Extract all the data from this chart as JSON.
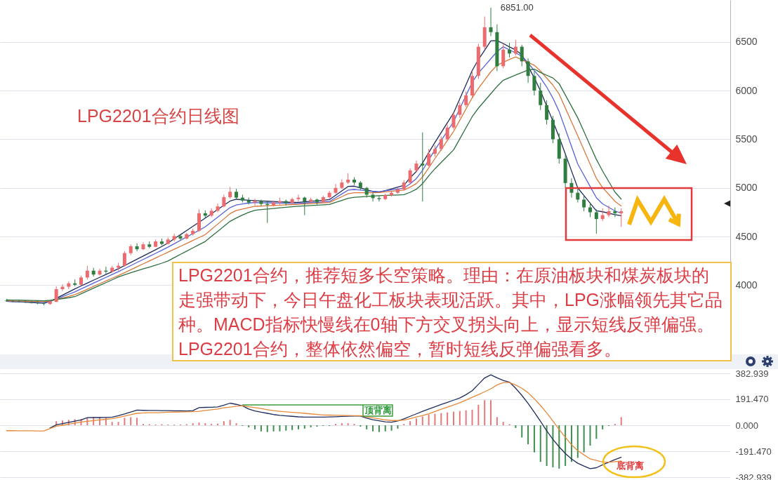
{
  "chart_data": [
    {
      "type": "candlestick",
      "title": "LPG2201合约日线图",
      "categories": [
        null,
        null,
        null,
        null,
        null,
        null,
        null,
        null,
        null,
        null,
        null,
        null,
        null,
        null,
        null,
        null,
        null,
        null,
        null,
        null,
        null,
        null,
        null,
        null,
        null,
        null,
        null,
        null,
        null,
        null,
        null,
        null,
        null,
        null,
        null,
        null,
        null,
        null,
        null,
        null,
        null,
        null,
        null,
        null,
        null,
        null,
        null,
        null,
        null,
        null,
        null,
        null,
        null,
        null,
        null,
        null,
        null,
        null,
        null,
        null,
        null,
        null,
        null,
        null,
        null,
        null,
        null,
        null,
        null,
        null,
        null,
        null,
        null,
        null,
        null,
        null,
        null,
        null,
        null,
        null,
        null,
        null,
        null,
        null,
        null,
        null,
        null,
        null,
        null,
        null,
        null,
        null,
        null,
        null,
        null,
        null,
        null,
        null,
        null,
        null
      ],
      "ohlc": [
        [
          3845,
          3860,
          3830,
          3840
        ],
        [
          3838,
          3850,
          3825,
          3835
        ],
        [
          3835,
          3848,
          3822,
          3832
        ],
        [
          3830,
          3845,
          3818,
          3826
        ],
        [
          3826,
          3840,
          3812,
          3820
        ],
        [
          3820,
          3835,
          3805,
          3814
        ],
        [
          3812,
          3825,
          3795,
          3808
        ],
        [
          3808,
          3840,
          3800,
          3830
        ],
        [
          3830,
          3990,
          3825,
          3960
        ],
        [
          3960,
          4010,
          3940,
          3985
        ],
        [
          3985,
          4040,
          3960,
          4020
        ],
        [
          4020,
          4060,
          3990,
          4005
        ],
        [
          4005,
          4100,
          3995,
          4080
        ],
        [
          4080,
          4200,
          4060,
          4150
        ],
        [
          4150,
          4180,
          4090,
          4110
        ],
        [
          4110,
          4170,
          4100,
          4150
        ],
        [
          4150,
          4190,
          4120,
          4140
        ],
        [
          4140,
          4200,
          4130,
          4180
        ],
        [
          4180,
          4230,
          4150,
          4200
        ],
        [
          4200,
          4350,
          4190,
          4330
        ],
        [
          4330,
          4420,
          4310,
          4400
        ],
        [
          4400,
          4430,
          4350,
          4370
        ],
        [
          4370,
          4440,
          4360,
          4420
        ],
        [
          4420,
          4450,
          4380,
          4395
        ],
        [
          4395,
          4470,
          4390,
          4450
        ],
        [
          4450,
          4480,
          4410,
          4425
        ],
        [
          4425,
          4490,
          4420,
          4470
        ],
        [
          4470,
          4530,
          4450,
          4505
        ],
        [
          4505,
          4520,
          4460,
          4480
        ],
        [
          4480,
          4540,
          4470,
          4525
        ],
        [
          4525,
          4580,
          4510,
          4560
        ],
        [
          4560,
          4780,
          4550,
          4740
        ],
        [
          4740,
          4770,
          4690,
          4715
        ],
        [
          4715,
          4790,
          4700,
          4765
        ],
        [
          4765,
          4840,
          4750,
          4810
        ],
        [
          4810,
          4930,
          4800,
          4905
        ],
        [
          4905,
          5010,
          4890,
          4960
        ],
        [
          4960,
          4990,
          4880,
          4900
        ],
        [
          4900,
          4930,
          4850,
          4870
        ],
        [
          4870,
          4900,
          4830,
          4850
        ],
        [
          4850,
          4890,
          4820,
          4865
        ],
        [
          4865,
          4880,
          4810,
          4835
        ],
        [
          4835,
          4860,
          4640,
          4825
        ],
        [
          4825,
          4870,
          4810,
          4850
        ],
        [
          4850,
          4900,
          4830,
          4865
        ],
        [
          4865,
          4880,
          4820,
          4845
        ],
        [
          4845,
          4900,
          4840,
          4885
        ],
        [
          4885,
          4930,
          4860,
          4900
        ],
        [
          4900,
          4910,
          4720,
          4860
        ],
        [
          4860,
          4900,
          4840,
          4880
        ],
        [
          4880,
          4890,
          4830,
          4855
        ],
        [
          4855,
          4920,
          4850,
          4905
        ],
        [
          4905,
          4970,
          4890,
          4950
        ],
        [
          4950,
          5040,
          4940,
          5000
        ],
        [
          5000,
          5090,
          4990,
          5055
        ],
        [
          5055,
          5150,
          5040,
          5085
        ],
        [
          5085,
          5110,
          5030,
          5055
        ],
        [
          5055,
          5070,
          4980,
          5000
        ],
        [
          5000,
          5010,
          4900,
          4930
        ],
        [
          4930,
          4950,
          4860,
          4895
        ],
        [
          4895,
          4920,
          4860,
          4885
        ],
        [
          4885,
          4940,
          4875,
          4925
        ],
        [
          4925,
          4970,
          4910,
          4950
        ],
        [
          4950,
          5000,
          4940,
          4985
        ],
        [
          4985,
          5080,
          4975,
          5055
        ],
        [
          5055,
          5200,
          5045,
          5180
        ],
        [
          5180,
          5280,
          5160,
          5250
        ],
        [
          5250,
          5570,
          4860,
          5230
        ],
        [
          5230,
          5400,
          5220,
          5350
        ],
        [
          5350,
          5440,
          5320,
          5400
        ],
        [
          5400,
          5530,
          5380,
          5500
        ],
        [
          5500,
          5650,
          5480,
          5620
        ],
        [
          5620,
          5780,
          5600,
          5750
        ],
        [
          5750,
          5880,
          5720,
          5850
        ],
        [
          5850,
          5990,
          5830,
          5950
        ],
        [
          5950,
          6200,
          5930,
          6150
        ],
        [
          6150,
          6480,
          6120,
          6450
        ],
        [
          6450,
          6760,
          6420,
          6650
        ],
        [
          6650,
          6851,
          6560,
          6600
        ],
        [
          6600,
          6680,
          6200,
          6250
        ],
        [
          6250,
          6480,
          6230,
          6420
        ],
        [
          6420,
          6490,
          6340,
          6380
        ],
        [
          6380,
          6520,
          6360,
          6450
        ],
        [
          6450,
          6470,
          6250,
          6300
        ],
        [
          6300,
          6330,
          6080,
          6150
        ],
        [
          6150,
          6200,
          5950,
          6000
        ],
        [
          6000,
          6080,
          5800,
          5850
        ],
        [
          5850,
          5900,
          5650,
          5700
        ],
        [
          5700,
          5740,
          5460,
          5500
        ],
        [
          5500,
          5560,
          5250,
          5300
        ],
        [
          5300,
          5340,
          5000,
          5050
        ],
        [
          5050,
          5100,
          4900,
          4950
        ],
        [
          4950,
          5000,
          4850,
          4880
        ],
        [
          4880,
          4920,
          4760,
          4800
        ],
        [
          4800,
          4850,
          4700,
          4750
        ],
        [
          4750,
          4780,
          4530,
          4680
        ],
        [
          4680,
          4790,
          4660,
          4720
        ],
        [
          4720,
          4820,
          4700,
          4760
        ],
        [
          4760,
          4800,
          4700,
          4740
        ],
        [
          4740,
          4790,
          4600,
          4760
        ]
      ],
      "colors": [
        "#2f7d3f",
        "#2f7d3f",
        "#2f7d3f",
        "#2f7d3f",
        "#2f7d3f",
        "#2f7d3f",
        "#2f7d3f",
        "#ec6b6f",
        "#ec6b6f",
        "#ec6b6f",
        "#ec6b6f",
        "#2f7d3f",
        "#ec6b6f",
        "#ec6b6f",
        "#2f7d3f",
        "#ec6b6f",
        "#2f7d3f",
        "#ec6b6f",
        "#ec6b6f",
        "#ec6b6f",
        "#ec6b6f",
        "#2f7d3f",
        "#ec6b6f",
        "#2f7d3f",
        "#ec6b6f",
        "#2f7d3f",
        "#ec6b6f",
        "#ec6b6f",
        "#2f7d3f",
        "#ec6b6f",
        "#ec6b6f",
        "#ec6b6f",
        "#2f7d3f",
        "#ec6b6f",
        "#ec6b6f",
        "#ec6b6f",
        "#ec6b6f",
        "#2f7d3f",
        "#2f7d3f",
        "#2f7d3f",
        "#ec6b6f",
        "#2f7d3f",
        "#2f7d3f",
        "#ec6b6f",
        "#ec6b6f",
        "#2f7d3f",
        "#ec6b6f",
        "#ec6b6f",
        "#2f7d3f",
        "#ec6b6f",
        "#2f7d3f",
        "#ec6b6f",
        "#ec6b6f",
        "#ec6b6f",
        "#ec6b6f",
        "#ec6b6f",
        "#2f7d3f",
        "#2f7d3f",
        "#2f7d3f",
        "#2f7d3f",
        "#2f7d3f",
        "#ec6b6f",
        "#ec6b6f",
        "#ec6b6f",
        "#ec6b6f",
        "#ec6b6f",
        "#ec6b6f",
        "#2f7d3f",
        "#ec6b6f",
        "#ec6b6f",
        "#ec6b6f",
        "#ec6b6f",
        "#ec6b6f",
        "#ec6b6f",
        "#ec6b6f",
        "#ec6b6f",
        "#ec6b6f",
        "#ec6b6f",
        "#2f7d3f",
        "#2f7d3f",
        "#ec6b6f",
        "#2f7d3f",
        "#ec6b6f",
        "#2f7d3f",
        "#2f7d3f",
        "#2f7d3f",
        "#2f7d3f",
        "#2f7d3f",
        "#2f7d3f",
        "#2f7d3f",
        "#2f7d3f",
        "#2f7d3f",
        "#2f7d3f",
        "#2f7d3f",
        "#2f7d3f",
        "#2f7d3f",
        "#ec6b6f",
        "#ec6b6f",
        "#2f7d3f",
        "#ec6b6f"
      ],
      "series": [
        {
          "type": "line",
          "color": "#1c2b5a",
          "values": [
            3835,
            3832,
            3829,
            3826,
            3822,
            3819,
            3816,
            3833,
            3866,
            3898,
            3931,
            3963,
            3993,
            4022,
            4052,
            4081,
            4111,
            4140,
            4170,
            4202,
            4235,
            4267,
            4300,
            4333,
            4365,
            4398,
            4434,
            4477,
            4520,
            4562,
            4605,
            4647,
            4690,
            4734,
            4778,
            4822,
            4865,
            4883,
            4878,
            4873,
            4869,
            4866,
            4863,
            4860,
            4857,
            4854,
            4851,
            4852,
            4857,
            4862,
            4868,
            4873,
            4880,
            4925,
            4970,
            5015,
            5018,
            5000,
            4982,
            4964,
            4954,
            4972,
            4990,
            5008,
            5026,
            5105,
            5170,
            5255,
            5363,
            5468,
            5569,
            5670,
            5770,
            5915,
            6060,
            6206,
            6319,
            6414,
            6511,
            6513,
            6483,
            6448,
            6417,
            6368,
            6250,
            6130,
            5996,
            5840,
            5684,
            5522,
            5348,
            5174,
            5000,
            4922,
            4843,
            4765,
            4755,
            4740,
            4725,
            4715
          ]
        },
        {
          "type": "line",
          "color": "#5563d6",
          "values": [
            3835,
            3834,
            3832,
            3830,
            3828,
            3825,
            3822,
            3834,
            3859,
            3883,
            3908,
            3933,
            3963,
            3992,
            4022,
            4051,
            4081,
            4111,
            4140,
            4171,
            4202,
            4234,
            4265,
            4296,
            4328,
            4359,
            4392,
            4426,
            4461,
            4496,
            4530,
            4565,
            4600,
            4650,
            4699,
            4749,
            4798,
            4825,
            4835,
            4845,
            4850,
            4848,
            4847,
            4845,
            4844,
            4842,
            4841,
            4841,
            4845,
            4849,
            4852,
            4856,
            4860,
            4899,
            4938,
            4977,
            4984,
            4977,
            4971,
            4964,
            4962,
            4971,
            4980,
            4989,
            4998,
            5042,
            5096,
            5180,
            5288,
            5392,
            5488,
            5584,
            5680,
            5815,
            5950,
            6085,
            6179,
            6253,
            6326,
            6400,
            6450,
            6418,
            6386,
            6354,
            6285,
            6205,
            6130,
            6036,
            5922,
            5785,
            5605,
            5425,
            5245,
            5130,
            5014,
            4899,
            4836,
            4800,
            4764,
            4740
          ]
        },
        {
          "type": "line",
          "color": "#d9783c",
          "values": [
            3840,
            3839,
            3837,
            3836,
            3834,
            3833,
            3831,
            3839,
            3855,
            3870,
            3886,
            3903,
            3931,
            3959,
            3988,
            4016,
            4044,
            4072,
            4100,
            4129,
            4159,
            4190,
            4220,
            4250,
            4280,
            4310,
            4340,
            4370,
            4400,
            4430,
            4460,
            4490,
            4520,
            4574,
            4628,
            4682,
            4736,
            4768,
            4783,
            4798,
            4811,
            4814,
            4817,
            4820,
            4823,
            4826,
            4829,
            4832,
            4835,
            4839,
            4842,
            4846,
            4850,
            4880,
            4910,
            4940,
            4950,
            4950,
            4950,
            4950,
            4952,
            4959,
            4965,
            4972,
            4978,
            5008,
            5044,
            5113,
            5207,
            5301,
            5394,
            5487,
            5580,
            5695,
            5811,
            5926,
            6022,
            6108,
            6193,
            6260,
            6290,
            6320,
            6345,
            6316,
            6288,
            6260,
            6200,
            6128,
            6056,
            5963,
            5821,
            5678,
            5535,
            5389,
            5244,
            5099,
            5003,
            4933,
            4862,
            4815
          ]
        },
        {
          "type": "line",
          "color": "#2e7040",
          "values": [
            3850,
            3848,
            3847,
            3845,
            3844,
            3842,
            3841,
            3845,
            3854,
            3863,
            3872,
            3883,
            3912,
            3941,
            3970,
            3999,
            4027,
            4056,
            4085,
            4108,
            4128,
            4148,
            4168,
            4187,
            4207,
            4227,
            4250,
            4284,
            4317,
            4350,
            4384,
            4417,
            4450,
            4502,
            4554,
            4605,
            4657,
            4691,
            4722,
            4749,
            4771,
            4777,
            4783,
            4789,
            4795,
            4801,
            4807,
            4812,
            4816,
            4819,
            4823,
            4826,
            4830,
            4851,
            4872,
            4893,
            4903,
            4908,
            4912,
            4917,
            4920,
            4923,
            4925,
            4927,
            4930,
            4955,
            4986,
            5044,
            5123,
            5197,
            5261,
            5326,
            5390,
            5504,
            5618,
            5732,
            5820,
            5894,
            5968,
            6042,
            6106,
            6132,
            6159,
            6185,
            6211,
            6220,
            6185,
            6157,
            6129,
            6071,
            5954,
            5837,
            5720,
            5578,
            5435,
            5293,
            5173,
            5065,
            4957,
            4885
          ]
        }
      ],
      "ylim": [
        3290,
        6930
      ],
      "yticks": [
        4000,
        4500,
        5000,
        5500,
        6000,
        6500
      ],
      "grid": "y",
      "annotations": [
        "LPG2201合约，推荐短多长空策略。理由：在原油板块和煤炭板块的走强带动下，今日午盘化工板块表现活跃。其中，LPG涨幅领先其它品种。MACD指标快慢线在0轴下方交叉拐头向上，显示短线反弹偏强。",
        "LPG2201合约，整体依然偏空，暂时短线反弹偏强看多。",
        "6851.00"
      ]
    },
    {
      "type": "bar",
      "categories": [
        null,
        null,
        null,
        null,
        null,
        null,
        null,
        null,
        null,
        null,
        null,
        null,
        null,
        null,
        null,
        null,
        null,
        null,
        null,
        null,
        null,
        null,
        null,
        null,
        null,
        null,
        null,
        null,
        null,
        null,
        null,
        null,
        null,
        null,
        null,
        null,
        null,
        null,
        null,
        null,
        null,
        null,
        null,
        null,
        null,
        null,
        null,
        null,
        null,
        null,
        null,
        null,
        null,
        null,
        null,
        null,
        null,
        null,
        null,
        null,
        null,
        null,
        null,
        null,
        null,
        null,
        null,
        null,
        null,
        null,
        null,
        null,
        null,
        null,
        null,
        null,
        null,
        null,
        null,
        null,
        null,
        null,
        null,
        null,
        null,
        null,
        null,
        null,
        null,
        null,
        null,
        null,
        null,
        null,
        null,
        null,
        null,
        null,
        null,
        null
      ],
      "values": [
        null,
        null,
        null,
        null,
        null,
        null,
        null,
        null,
        30,
        35,
        40,
        45,
        45,
        55,
        60,
        60,
        55,
        25,
        25,
        55,
        60,
        55,
        10,
        8,
        6,
        8,
        6,
        5,
        6,
        8,
        15,
        20,
        15,
        10,
        12,
        30,
        40,
        15,
        -5,
        -15,
        -30,
        -45,
        -50,
        -45,
        -45,
        -40,
        -35,
        -30,
        -25,
        -15,
        -10,
        -5,
        -5,
        10,
        15,
        15,
        10,
        -10,
        -30,
        -45,
        -50,
        -45,
        -40,
        -25,
        10,
        30,
        50,
        65,
        80,
        85,
        90,
        95,
        100,
        105,
        110,
        115,
        150,
        185,
        185,
        60,
        25,
        8,
        -20,
        -90,
        -140,
        -200,
        -270,
        -300,
        -310,
        -320,
        -300,
        -270,
        -240,
        -200,
        -150,
        -100,
        -30,
        -5,
        10,
        60
      ],
      "colors": [
        null,
        null,
        null,
        null,
        null,
        null,
        null,
        null,
        "#e57a7a",
        "#e57a7a",
        "#e57a7a",
        "#e57a7a",
        "#e57a7a",
        "#e57a7a",
        "#e57a7a",
        "#e57a7a",
        "#e57a7a",
        "#e57a7a",
        "#e57a7a",
        "#e57a7a",
        "#e57a7a",
        "#e57a7a",
        "#e57a7a",
        "#e57a7a",
        "#e57a7a",
        "#e57a7a",
        "#e57a7a",
        "#e57a7a",
        "#e57a7a",
        "#e57a7a",
        "#e57a7a",
        "#e57a7a",
        "#e57a7a",
        "#e57a7a",
        "#e57a7a",
        "#e57a7a",
        "#e57a7a",
        "#e57a7a",
        "#3f8f4f",
        "#3f8f4f",
        "#3f8f4f",
        "#3f8f4f",
        "#3f8f4f",
        "#3f8f4f",
        "#3f8f4f",
        "#3f8f4f",
        "#3f8f4f",
        "#3f8f4f",
        "#3f8f4f",
        "#3f8f4f",
        "#3f8f4f",
        "#3f8f4f",
        "#3f8f4f",
        "#e57a7a",
        "#e57a7a",
        "#e57a7a",
        "#e57a7a",
        "#3f8f4f",
        "#3f8f4f",
        "#3f8f4f",
        "#3f8f4f",
        "#3f8f4f",
        "#3f8f4f",
        "#3f8f4f",
        "#e57a7a",
        "#e57a7a",
        "#e57a7a",
        "#e57a7a",
        "#e57a7a",
        "#e57a7a",
        "#e57a7a",
        "#e57a7a",
        "#e57a7a",
        "#e57a7a",
        "#e57a7a",
        "#e57a7a",
        "#e57a7a",
        "#e57a7a",
        "#e57a7a",
        "#e57a7a",
        "#e57a7a",
        "#e57a7a",
        "#3f8f4f",
        "#3f8f4f",
        "#3f8f4f",
        "#3f8f4f",
        "#3f8f4f",
        "#3f8f4f",
        "#3f8f4f",
        "#3f8f4f",
        "#3f8f4f",
        "#3f8f4f",
        "#3f8f4f",
        "#3f8f4f",
        "#3f8f4f",
        "#3f8f4f",
        "#3f8f4f",
        "#3f8f4f",
        "#e57a7a",
        "#e57a7a"
      ],
      "series": [
        {
          "type": "line",
          "color": "#1f2d5c",
          "values": [
            null,
            null,
            null,
            null,
            null,
            null,
            null,
            -20,
            3,
            12,
            21,
            30,
            39,
            56,
            57,
            57,
            58,
            60,
            71,
            84,
            98,
            112,
            110,
            109,
            109,
            108,
            108,
            107,
            106,
            105,
            108,
            130,
            132,
            133,
            135,
            148,
            163,
            154,
            143,
            120,
            105,
            96,
            88,
            79,
            73,
            69,
            66,
            62,
            60,
            60,
            60,
            60,
            61,
            63,
            65,
            67,
            68,
            68,
            53,
            41,
            33,
            25,
            23,
            32,
            47,
            66,
            84,
            103,
            120,
            137,
            153,
            169,
            185,
            201,
            226,
            255,
            302,
            349,
            372,
            350,
            331,
            318,
            273,
            220,
            161,
            96,
            29,
            -41,
            -104,
            -159,
            -208,
            -248,
            -280,
            -301,
            -320,
            -313,
            -292,
            -272,
            -253,
            -236
          ]
        },
        {
          "type": "line",
          "color": "#e8893a",
          "values": [
            -40,
            -40,
            -41,
            -41,
            -41,
            -42,
            -42,
            -24,
            -7,
            0,
            8,
            16,
            24,
            29,
            34,
            39,
            44,
            49,
            58,
            68,
            78,
            88,
            91,
            92,
            93,
            94,
            96,
            97,
            98,
            99,
            100,
            103,
            109,
            114,
            120,
            129,
            134,
            140,
            144,
            137,
            130,
            123,
            115,
            108,
            103,
            99,
            95,
            92,
            88,
            84,
            80,
            76,
            75,
            74,
            73,
            72,
            71,
            70,
            62,
            55,
            47,
            40,
            35,
            35,
            38,
            49,
            61,
            72,
            85,
            102,
            118,
            134,
            150,
            166,
            186,
            206,
            226,
            247,
            269,
            297,
            315,
            315,
            297,
            273,
            240,
            195,
            146,
            91,
            32,
            -30,
            -89,
            -144,
            -188,
            -218,
            -248,
            -259,
            -271,
            -272,
            -268,
            -264
          ]
        }
      ],
      "ylim": [
        -382.939,
        382.939
      ],
      "yticks": [
        -382.939,
        {
          "value": -191.47,
          "label": "-191.470"
        },
        {
          "value": 0,
          "label": "0.000"
        },
        {
          "value": 191.47,
          "label": "191.470"
        },
        382.939
      ],
      "grid": "y",
      "annotations": [
        "顶背离",
        "底背离"
      ]
    }
  ]
}
